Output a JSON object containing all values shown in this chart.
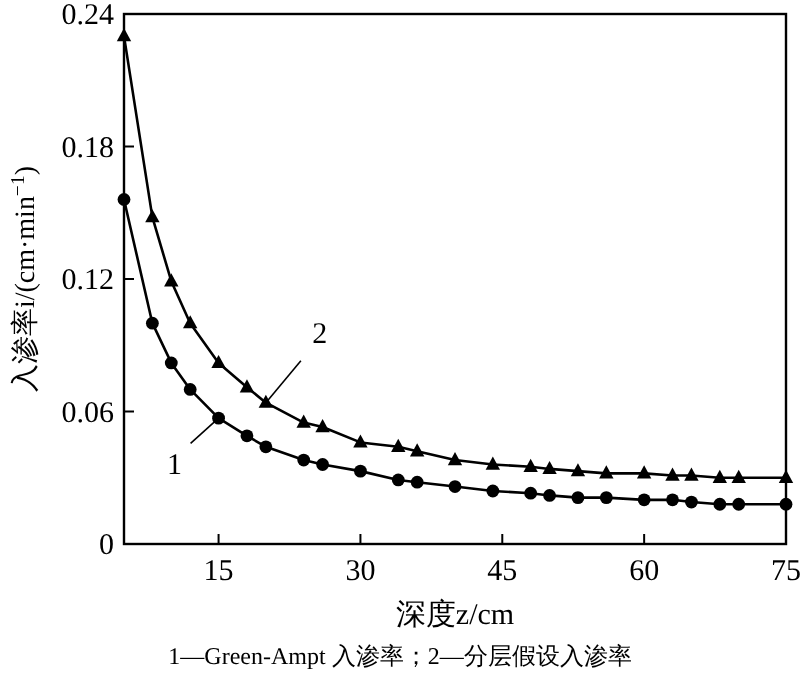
{
  "chart_data": {
    "type": "line",
    "xlabel": "深度z/cm",
    "ylabel": "入渗率i/(cm·min$^{−1}$)",
    "xlim": [
      5,
      75
    ],
    "ylim": [
      0,
      0.24
    ],
    "xticks": [
      15,
      30,
      45,
      60,
      75
    ],
    "yticks": [
      0,
      0.06,
      0.12,
      0.18,
      0.24
    ],
    "grid": false,
    "line_style": "solid",
    "series": [
      {
        "name": "1",
        "color": "#000000",
        "marker": "circle",
        "x": [
          5,
          8,
          10,
          12,
          15,
          18,
          20,
          24,
          26,
          30,
          34,
          36,
          40,
          44,
          48,
          50,
          53,
          56,
          60,
          63,
          65,
          68,
          70,
          75
        ],
        "values": [
          0.156,
          0.1,
          0.082,
          0.07,
          0.057,
          0.049,
          0.044,
          0.038,
          0.036,
          0.033,
          0.029,
          0.028,
          0.026,
          0.024,
          0.023,
          0.022,
          0.021,
          0.021,
          0.02,
          0.02,
          0.019,
          0.018,
          0.018,
          0.018
        ]
      },
      {
        "name": "2",
        "color": "#000000",
        "marker": "triangle",
        "x": [
          5,
          8,
          10,
          12,
          15,
          18,
          20,
          24,
          26,
          30,
          34,
          36,
          40,
          44,
          48,
          50,
          53,
          56,
          60,
          63,
          65,
          68,
          70,
          75
        ],
        "values": [
          0.23,
          0.148,
          0.119,
          0.1,
          0.082,
          0.071,
          0.064,
          0.055,
          0.053,
          0.046,
          0.044,
          0.042,
          0.038,
          0.036,
          0.035,
          0.034,
          0.033,
          0.032,
          0.032,
          0.031,
          0.031,
          0.03,
          0.03,
          0.03
        ]
      }
    ],
    "annotations": [
      "1—Green-Ampt 入渗率；2—分层假设入渗率"
    ]
  }
}
